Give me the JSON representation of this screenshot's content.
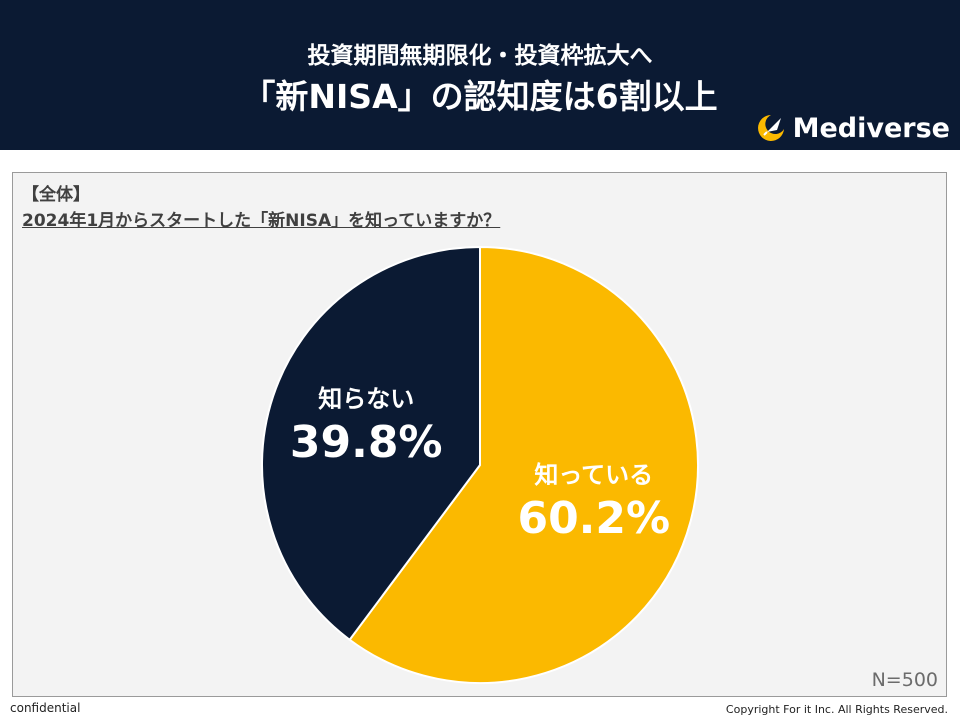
{
  "header": {
    "title_line1": "投資期間無期限化・投資枠拡大へ",
    "title_line2": "「新NISA」の認知度は6割以上",
    "brand": "Mediverse"
  },
  "panel": {
    "section_label": "【全体】",
    "question": "2024年1月からスタートした「新NISA」を知っていますか？",
    "sample_size": "N=500"
  },
  "footer": {
    "left": "confidential",
    "right": "Copyright For it Inc. All Rights Reserved."
  },
  "colors": {
    "header_bg": "#0b1a33",
    "know": "#fbb900",
    "dont_know": "#0b1a33"
  },
  "chart_data": {
    "type": "pie",
    "slices": [
      {
        "label": "知っている",
        "value": 60.2,
        "value_label": "60.2%",
        "color": "#fbb900"
      },
      {
        "label": "知らない",
        "value": 39.8,
        "value_label": "39.8%",
        "color": "#0b1a33"
      }
    ],
    "start": "12 o'clock",
    "direction": "clockwise"
  }
}
